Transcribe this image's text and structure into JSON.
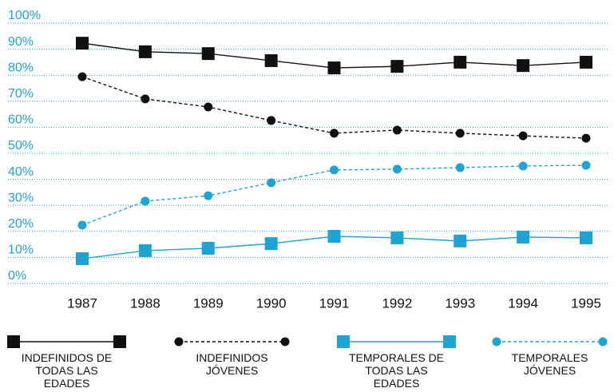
{
  "chart_data": {
    "type": "line",
    "categories": [
      "1987",
      "1988",
      "1989",
      "1990",
      "1991",
      "1992",
      "1993",
      "1994",
      "1995"
    ],
    "series": [
      {
        "name": "INDEFINIDOS DE TODAS LAS EDADES",
        "color": "#111111",
        "marker": "square",
        "dashed": false,
        "values": [
          92.3,
          89,
          88.3,
          85.6,
          82.8,
          83.4,
          85,
          83.7,
          85
        ]
      },
      {
        "name": "INDEFINIDOS JÓVENES",
        "color": "#111111",
        "marker": "circle",
        "dashed": true,
        "values": [
          79.4,
          70.9,
          67.8,
          62.6,
          57.7,
          58.9,
          57.7,
          56.7,
          55.8
        ]
      },
      {
        "name": "TEMPORALES DE TODAS LAS EDADES",
        "color": "#1fa3d1",
        "marker": "square",
        "dashed": false,
        "values": [
          9.5,
          12.6,
          13.5,
          15.3,
          18.1,
          17.5,
          16.3,
          17.8,
          17.5
        ]
      },
      {
        "name": "TEMPORALES JÓVENES",
        "color": "#1fa3d1",
        "marker": "circle",
        "dashed": true,
        "values": [
          22.4,
          31.6,
          33.7,
          38.7,
          43.6,
          43.9,
          44.5,
          45.1,
          45.4
        ]
      }
    ],
    "ylim": [
      0,
      100
    ],
    "yticks": [
      {
        "value": 0,
        "label": "0%"
      },
      {
        "value": 10,
        "label": "10%"
      },
      {
        "value": 20,
        "label": "20%"
      },
      {
        "value": 30,
        "label": "30%"
      },
      {
        "value": 40,
        "label": "40%"
      },
      {
        "value": 50,
        "label": "50%"
      },
      {
        "value": 60,
        "label": "60%"
      },
      {
        "value": 70,
        "label": "70%"
      },
      {
        "value": 80,
        "label": "80%"
      },
      {
        "value": 90,
        "label": "90%"
      },
      {
        "value": 100,
        "label": "100%"
      }
    ],
    "grid": true,
    "grid_color": "#1fa3d1",
    "tick_color": "#1fa3d1",
    "legend": "bottom"
  }
}
